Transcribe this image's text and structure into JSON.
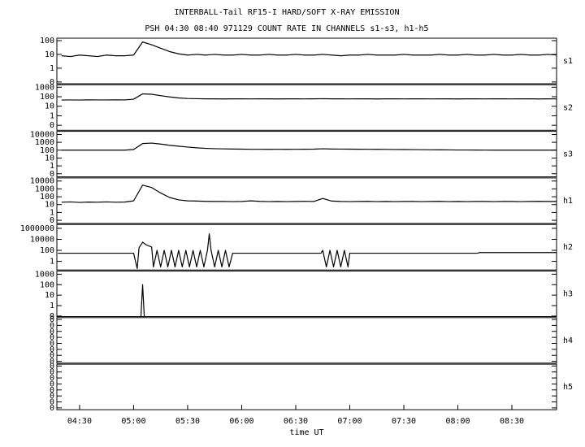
{
  "title": "INTERBALL-Tail RF15-I HARD/SOFT X-RAY EMISSION",
  "subtitle": "PSH 04:30 08:40 971129  COUNT RATE IN CHANNELS s1-s3, h1-h5",
  "chart_data": [
    {
      "type": "line",
      "label": "s1",
      "log_scale": true,
      "color": "#000000",
      "xlim": [
        257.4,
        534.8
      ],
      "ylim": [
        0.075,
        150
      ],
      "yticks": [
        {
          "value": 0.1,
          "label": "0"
        },
        1,
        10,
        100
      ],
      "x": [
        260,
        265,
        270,
        275,
        280,
        285,
        290,
        295,
        300,
        305,
        310,
        315,
        320,
        325,
        330,
        335,
        340,
        345,
        350,
        355,
        360,
        365,
        370,
        375,
        380,
        385,
        390,
        395,
        400,
        405,
        410,
        415,
        420,
        425,
        430,
        435,
        440,
        445,
        450,
        455,
        460,
        465,
        470,
        475,
        480,
        485,
        490,
        495,
        500,
        505,
        510,
        515,
        520,
        525,
        530,
        535
      ],
      "values": [
        8,
        7,
        9,
        8,
        7,
        9,
        8,
        8,
        9,
        80,
        50,
        28,
        16,
        11,
        9,
        10,
        9,
        10,
        9,
        9,
        10,
        9,
        9,
        10,
        9,
        9,
        10,
        9,
        9,
        10,
        9,
        8,
        9,
        9,
        10,
        9,
        9,
        9,
        10,
        9,
        9,
        9,
        10,
        9,
        9,
        10,
        9,
        9,
        10,
        9,
        9,
        10,
        9,
        9,
        10,
        9
      ]
    },
    {
      "type": "line",
      "label": "s2",
      "log_scale": true,
      "color": "#000000",
      "xlim": [
        257.4,
        534.8
      ],
      "ylim": [
        0.03,
        1800
      ],
      "yticks": [
        {
          "value": 0.1,
          "label": "0"
        },
        1,
        10,
        100,
        1000
      ],
      "x": [
        260,
        265,
        270,
        275,
        280,
        285,
        290,
        295,
        300,
        305,
        310,
        315,
        320,
        325,
        330,
        335,
        340,
        345,
        350,
        355,
        360,
        365,
        370,
        375,
        380,
        385,
        390,
        395,
        400,
        405,
        410,
        415,
        420,
        425,
        430,
        435,
        440,
        445,
        450,
        455,
        460,
        465,
        470,
        475,
        480,
        485,
        490,
        495,
        500,
        505,
        510,
        515,
        520,
        525,
        530,
        535
      ],
      "values": [
        45,
        46,
        45,
        47,
        46,
        46,
        47,
        46,
        55,
        200,
        180,
        130,
        95,
        75,
        65,
        62,
        60,
        60,
        58,
        60,
        60,
        59,
        60,
        60,
        58,
        60,
        60,
        59,
        60,
        62,
        60,
        60,
        59,
        60,
        60,
        58,
        60,
        60,
        59,
        60,
        60,
        59,
        60,
        60,
        58,
        60,
        60,
        59,
        60,
        60,
        59,
        60,
        60,
        58,
        60,
        59
      ]
    },
    {
      "type": "line",
      "label": "s3",
      "log_scale": true,
      "color": "#000000",
      "xlim": [
        257.4,
        534.8
      ],
      "ylim": [
        0.04,
        25000
      ],
      "yticks": [
        {
          "value": 0.1,
          "label": "0"
        },
        1,
        10,
        100,
        1000,
        10000
      ],
      "x": [
        260,
        265,
        270,
        275,
        280,
        285,
        290,
        295,
        300,
        305,
        310,
        315,
        320,
        325,
        330,
        335,
        340,
        345,
        350,
        355,
        360,
        365,
        370,
        375,
        380,
        385,
        390,
        395,
        400,
        405,
        410,
        415,
        420,
        425,
        430,
        435,
        440,
        445,
        450,
        455,
        460,
        465,
        470,
        475,
        480,
        485,
        490,
        495,
        500,
        505,
        510,
        515,
        520,
        525,
        530,
        535
      ],
      "values": [
        100,
        100,
        100,
        100,
        100,
        100,
        100,
        100,
        120,
        700,
        800,
        600,
        420,
        320,
        250,
        200,
        170,
        155,
        145,
        140,
        135,
        130,
        130,
        128,
        130,
        128,
        130,
        132,
        135,
        150,
        140,
        138,
        135,
        132,
        130,
        128,
        125,
        122,
        120,
        118,
        115,
        112,
        110,
        108,
        105,
        105,
        103,
        102,
        100,
        100,
        100,
        100,
        100,
        100,
        100,
        100
      ]
    },
    {
      "type": "line",
      "label": "h1",
      "log_scale": true,
      "color": "#000000",
      "xlim": [
        257.4,
        534.8
      ],
      "ylim": [
        0.04,
        25000
      ],
      "yticks": [
        {
          "value": 0.1,
          "label": "0"
        },
        1,
        10,
        100,
        1000,
        10000
      ],
      "x": [
        260,
        265,
        270,
        275,
        280,
        285,
        290,
        295,
        300,
        305,
        310,
        315,
        320,
        325,
        330,
        335,
        340,
        345,
        350,
        355,
        360,
        365,
        370,
        375,
        380,
        385,
        390,
        395,
        400,
        405,
        410,
        415,
        420,
        425,
        430,
        435,
        440,
        445,
        450,
        455,
        460,
        465,
        470,
        475,
        480,
        485,
        490,
        495,
        500,
        505,
        510,
        515,
        520,
        525,
        530,
        535
      ],
      "values": [
        20,
        22,
        19,
        21,
        20,
        22,
        20,
        21,
        30,
        3000,
        1500,
        300,
        80,
        40,
        30,
        28,
        26,
        25,
        25,
        24,
        25,
        30,
        26,
        24,
        25,
        24,
        25,
        26,
        25,
        60,
        28,
        25,
        24,
        25,
        26,
        24,
        25,
        24,
        25,
        25,
        24,
        25,
        26,
        24,
        25,
        24,
        25,
        25,
        24,
        25,
        25,
        24,
        25,
        26,
        25,
        25
      ]
    },
    {
      "type": "line",
      "label": "h2",
      "log_scale": true,
      "color": "#000000",
      "xlim": [
        257.4,
        534.8
      ],
      "ylim": [
        0.027,
        5000000
      ],
      "yticks": [
        1,
        100,
        10000,
        1000000
      ],
      "x": [
        258,
        300,
        302,
        303,
        305,
        307,
        310,
        311,
        313,
        315,
        317,
        319,
        321,
        323,
        325,
        327,
        329,
        331,
        333,
        335,
        337,
        339,
        341,
        342,
        343,
        345,
        347,
        349,
        351,
        353,
        355,
        404,
        405,
        407,
        409,
        411,
        413,
        415,
        417,
        419,
        420,
        491,
        492,
        535
      ],
      "values": [
        30,
        30,
        0.05,
        300,
        3000,
        1000,
        400,
        0.1,
        100,
        0.1,
        100,
        0.1,
        100,
        0.1,
        100,
        0.1,
        100,
        0.1,
        100,
        0.1,
        100,
        0.1,
        100,
        100000,
        100,
        0.1,
        100,
        0.1,
        100,
        0.1,
        30,
        30,
        100,
        0.1,
        100,
        0.1,
        100,
        0.1,
        100,
        0.1,
        30,
        30,
        40,
        40
      ]
    },
    {
      "type": "line",
      "label": "h3",
      "log_scale": true,
      "color": "#000000",
      "xlim": [
        257.4,
        534.8
      ],
      "ylim": [
        0.09,
        2000
      ],
      "yticks": [
        {
          "value": 0.1,
          "label": "0"
        },
        1,
        10,
        100,
        1000
      ],
      "x": [
        258,
        304,
        305,
        306,
        535
      ],
      "values": [
        0,
        0,
        100,
        0,
        0
      ]
    },
    {
      "type": "line",
      "label": "h4",
      "log_scale": true,
      "color": "#000000",
      "xlim": [
        257.4,
        534.8
      ],
      "ylim": [
        5e-09,
        0.2
      ],
      "yticks": [
        {
          "value": 1e-08,
          "label": "0"
        },
        {
          "value": 1e-07,
          "label": "0"
        },
        {
          "value": 1e-06,
          "label": "0"
        },
        {
          "value": 1e-05,
          "label": "0"
        },
        {
          "value": 0.0001,
          "label": "0"
        },
        {
          "value": 0.001,
          "label": "0"
        },
        {
          "value": 0.01,
          "label": "0"
        },
        {
          "value": 0.1,
          "label": "0"
        }
      ],
      "x": [
        258,
        535
      ],
      "values": [
        0,
        0
      ]
    },
    {
      "type": "line",
      "label": "h5",
      "log_scale": true,
      "color": "#000000",
      "xlim": [
        257.4,
        534.8
      ],
      "ylim": [
        5e-09,
        0.2
      ],
      "yticks": [
        {
          "value": 1e-08,
          "label": "0"
        },
        {
          "value": 1e-07,
          "label": "0"
        },
        {
          "value": 1e-06,
          "label": "0"
        },
        {
          "value": 1e-05,
          "label": "0"
        },
        {
          "value": 0.0001,
          "label": "0"
        },
        {
          "value": 0.001,
          "label": "0"
        },
        {
          "value": 0.01,
          "label": "0"
        },
        {
          "value": 0.1,
          "label": "0"
        }
      ],
      "x": [
        258,
        535
      ],
      "values": [
        0,
        0
      ],
      "xlabel": "time UT",
      "xticks": [
        {
          "value": 270,
          "label": "04:30"
        },
        {
          "value": 300,
          "label": "05:00"
        },
        {
          "value": 330,
          "label": "05:30"
        },
        {
          "value": 360,
          "label": "06:00"
        },
        {
          "value": 390,
          "label": "06:30"
        },
        {
          "value": 420,
          "label": "07:00"
        },
        {
          "value": 450,
          "label": "07:30"
        },
        {
          "value": 480,
          "label": "08:00"
        },
        {
          "value": 510,
          "label": "08:30"
        }
      ]
    }
  ]
}
